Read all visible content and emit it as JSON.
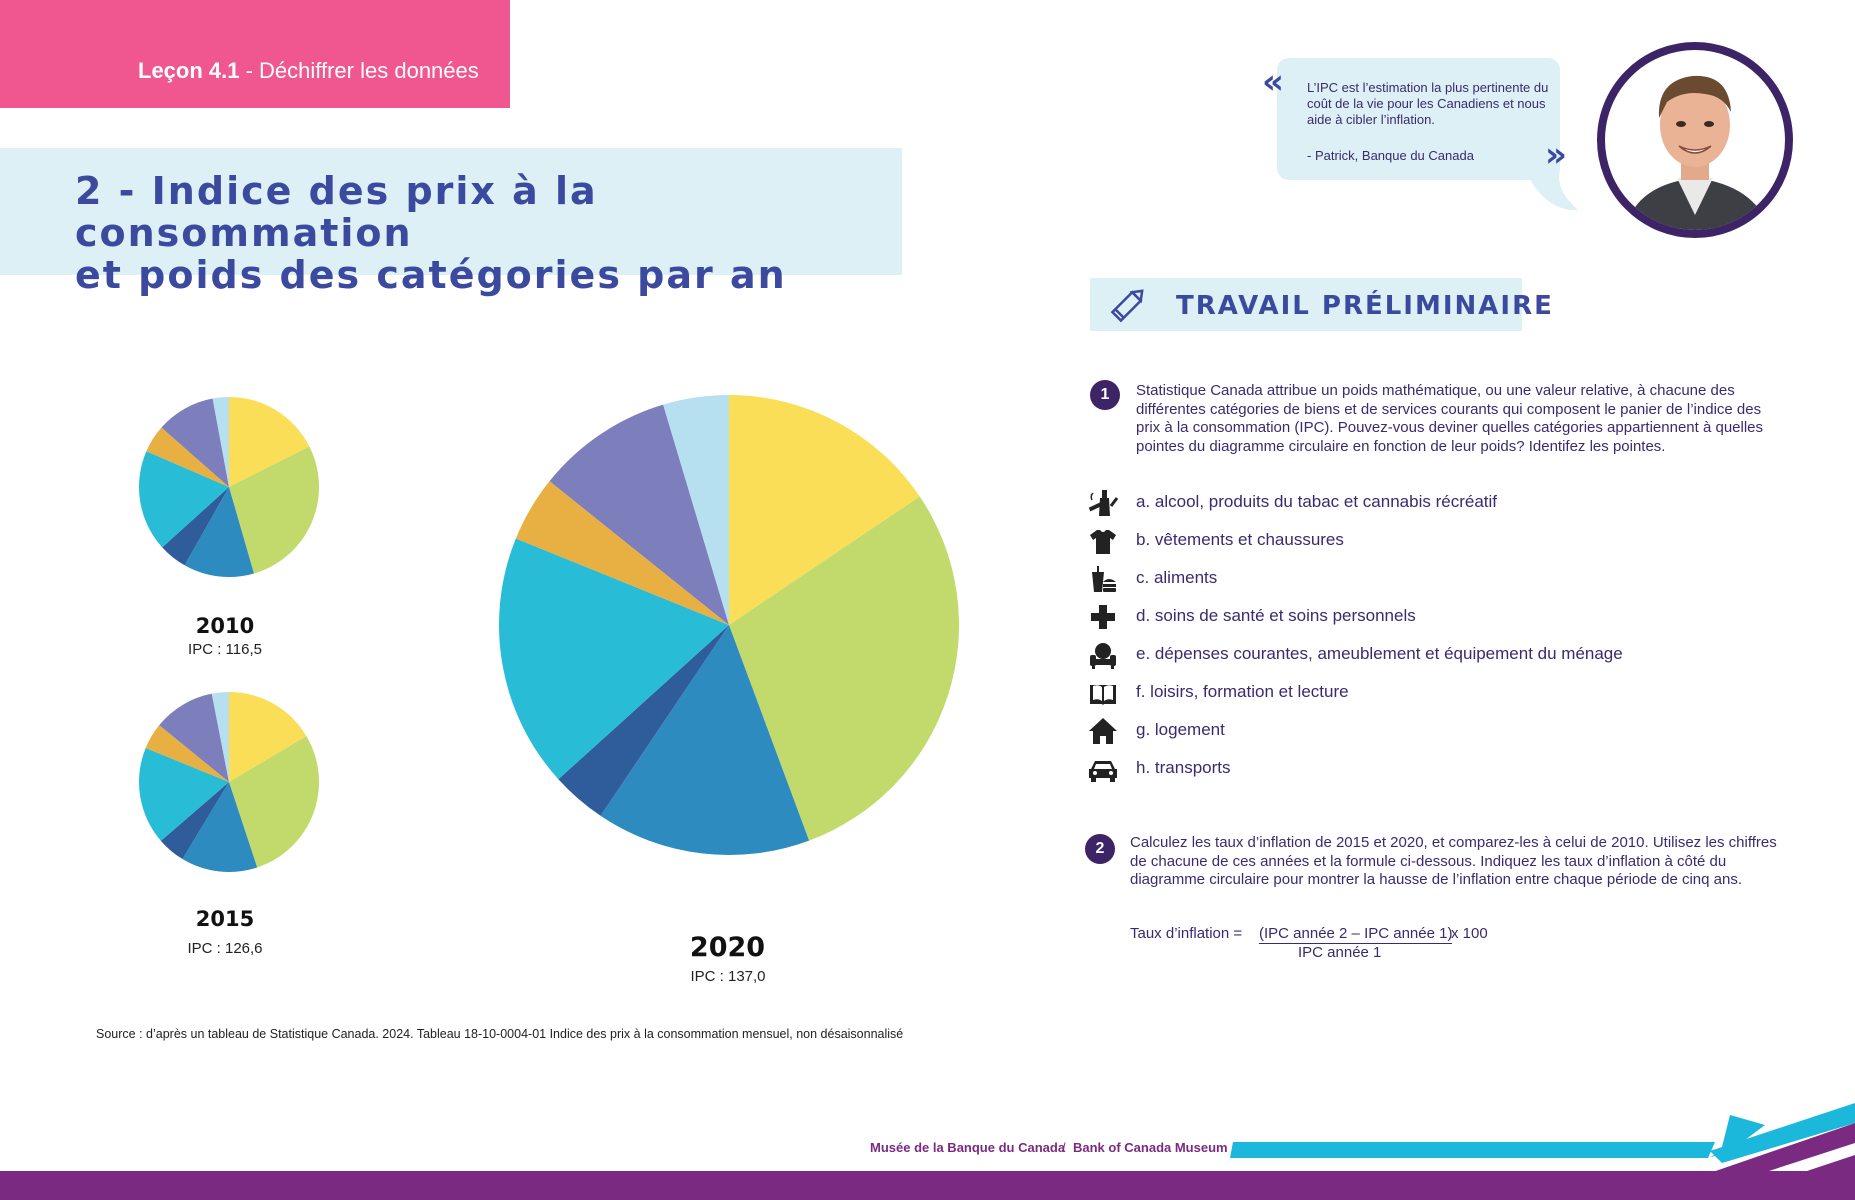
{
  "header": {
    "lesson_bold": "Leçon 4.1",
    "lesson_rest": " - Déchiffrer les données"
  },
  "title": {
    "line1": "2 - Indice des prix à la consommation",
    "line2": "et poids des catégories par an"
  },
  "quote": {
    "text": "L’IPC est l’estimation la plus pertinente du coût de la vie pour les Canadiens et nous aide à cibler l’inflation.",
    "author": "-      Patrick, Banque du Canada"
  },
  "preliminary": {
    "title": "TRAVAIL PRÉLIMINAIRE"
  },
  "question1": {
    "number": "1",
    "text": "Statistique Canada attribue un poids mathématique, ou une valeur relative, à chacune des différentes catégories de biens et de services courants qui composent le panier de l’indice des prix à la consommation (IPC). Pouvez-vous deviner quelles catégories appartiennent à quelles pointes du diagramme circulaire en fonction de leur poids? Identifez les pointes."
  },
  "categories": [
    {
      "label": "a. alcool, produits du tabac et cannabis récréatif",
      "icon": "alcohol-tobacco-icon"
    },
    {
      "label": "b. vêtements et chaussures",
      "icon": "tshirt-icon"
    },
    {
      "label": "c. aliments",
      "icon": "food-icon"
    },
    {
      "label": "d. soins de santé et soins personnels",
      "icon": "health-cross-icon"
    },
    {
      "label": "e. dépenses courantes, ameublement et équipement du ménage",
      "icon": "armchair-icon"
    },
    {
      "label": "f. loisirs, formation et lecture",
      "icon": "book-icon"
    },
    {
      "label": "g. logement",
      "icon": "house-icon"
    },
    {
      "label": "h. transports",
      "icon": "car-icon"
    }
  ],
  "question2": {
    "number": "2",
    "text": "Calculez les taux d’inflation de 2015 et 2020, et comparez-les à celui de 2010. Utilisez les chiffres de chacune de ces années et la formule ci-dessous. Indiquez les taux d’inflation à côté du diagramme circulaire pour montrer la hausse de l’inflation entre chaque période de cinq ans.",
    "formula_label": "Taux d’inflation = ",
    "formula_numerator": "(IPC année 2 – IPC année 1)",
    "formula_multiplier": " x 100",
    "formula_denominator": "IPC année 1"
  },
  "chart_data": [
    {
      "type": "pie",
      "year": "2010",
      "cpi_label": "IPC : 116,5",
      "values": [
        16.9,
        26.9,
        12.2,
        4.9,
        17.5,
        4.8,
        10.2,
        2.8
      ],
      "colors": [
        "#fbde57",
        "#c2da6b",
        "#2e8bbf",
        "#2f5c9a",
        "#29bcd6",
        "#e8af42",
        "#7d7fbd",
        "#b6e0ef"
      ]
    },
    {
      "type": "pie",
      "year": "2015",
      "cpi_label": "IPC : 126,6",
      "values": [
        16.1,
        27.8,
        13.4,
        4.9,
        17.1,
        4.6,
        10.8,
        3.0
      ],
      "colors": [
        "#fbde57",
        "#c2da6b",
        "#2e8bbf",
        "#2f5c9a",
        "#29bcd6",
        "#e8af42",
        "#7d7fbd",
        "#b6e0ef"
      ]
    },
    {
      "type": "pie",
      "year": "2020",
      "cpi_label": "IPC : 137,0",
      "values": [
        16.5,
        30.5,
        16.0,
        4.1,
        18.9,
        4.9,
        10.2,
        4.9
      ],
      "colors": [
        "#fbde57",
        "#c2da6b",
        "#2e8bbf",
        "#2f5c9a",
        "#29bcd6",
        "#e8af42",
        "#7d7fbd",
        "#b6e0ef"
      ]
    }
  ],
  "source": "Source : d’après un tableau de Statistique Canada. 2024. Tableau 18-10-0004-01 Indice des prix à la consommation mensuel, non désaisonnalisé",
  "footer": {
    "museum_fr": "Musée de la Banque du Canada",
    "separator": "/",
    "museum_en": "Bank of Canada Museum"
  },
  "colors": {
    "banner_pink": "#f05690",
    "title_blue": "#3b4a9e",
    "light_blue": "#dcf0f6",
    "footer_purple": "#7a2a80",
    "accent_cyan": "#1bb8dc"
  }
}
